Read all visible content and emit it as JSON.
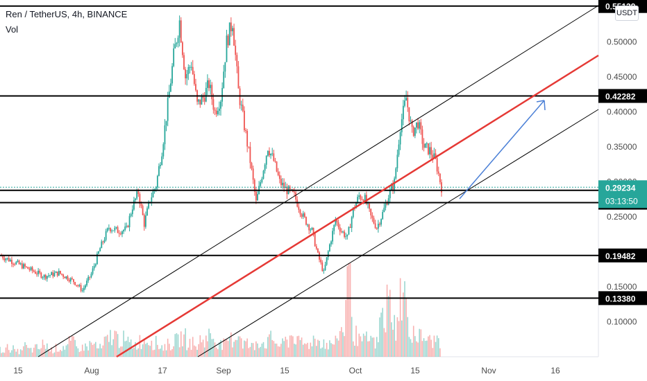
{
  "header": {
    "symbol": "Ren / TetherUS, 4h, BINANCE",
    "indicator": "Vol",
    "currency_button": "USDT"
  },
  "chart_data": {
    "type": "candlestick",
    "title": "Ren / TetherUS, 4h, BINANCE",
    "xlabel": "",
    "ylabel": "",
    "ylim": [
      0.05,
      0.56
    ],
    "x_ticks": [
      "15",
      "Aug",
      "17",
      "Sep",
      "15",
      "Oct",
      "15",
      "Nov",
      "16"
    ],
    "y_ticks": [
      "0.10000",
      "0.15000",
      "0.20000",
      "0.25000",
      "0.30000",
      "0.35000",
      "0.40000",
      "0.45000",
      "0.50000"
    ],
    "last_price": {
      "value": 0.29234,
      "label": "0.29234",
      "countdown": "03:13:50",
      "color": "#26a69a"
    },
    "horizontal_levels": [
      {
        "value": 0.55139,
        "label": "0.55139"
      },
      {
        "value": 0.42282,
        "label": "0.42282"
      },
      {
        "value": 0.28795,
        "label": "0.28795"
      },
      {
        "value": 0.27028,
        "label": "0.27028"
      },
      {
        "value": 0.19482,
        "label": "0.19482"
      },
      {
        "value": 0.1338,
        "label": "0.13380"
      }
    ],
    "colors": {
      "up": "#26a69a",
      "down": "#ef5350",
      "trend_line": "#e53935",
      "arrow": "#4a7fd6",
      "level": "#000000"
    },
    "series": [
      {
        "name": "",
        "points": [
          [
            0,
            0.195
          ],
          [
            5,
            0.185
          ],
          [
            10,
            0.175
          ],
          [
            15,
            0.165
          ],
          [
            20,
            0.17
          ],
          [
            25,
            0.158
          ],
          [
            28,
            0.145
          ],
          [
            31,
            0.168
          ],
          [
            34,
            0.205
          ],
          [
            37,
            0.235
          ],
          [
            40,
            0.23
          ],
          [
            43,
            0.232
          ],
          [
            45,
            0.265
          ],
          [
            47,
            0.285
          ],
          [
            49,
            0.24
          ],
          [
            51,
            0.275
          ],
          [
            53,
            0.295
          ],
          [
            55,
            0.345
          ],
          [
            57,
            0.41
          ],
          [
            59,
            0.48
          ],
          [
            61,
            0.53
          ],
          [
            63,
            0.45
          ],
          [
            65,
            0.47
          ],
          [
            67,
            0.41
          ],
          [
            69,
            0.42
          ],
          [
            71,
            0.44
          ],
          [
            73,
            0.4
          ],
          [
            75,
            0.42
          ],
          [
            77,
            0.5
          ],
          [
            79,
            0.53
          ],
          [
            81,
            0.43
          ],
          [
            83,
            0.38
          ],
          [
            85,
            0.33
          ],
          [
            87,
            0.27
          ],
          [
            89,
            0.31
          ],
          [
            91,
            0.35
          ],
          [
            93,
            0.33
          ],
          [
            95,
            0.3
          ],
          [
            97,
            0.29
          ],
          [
            100,
            0.28
          ],
          [
            103,
            0.25
          ],
          [
            106,
            0.23
          ],
          [
            108,
            0.195
          ],
          [
            110,
            0.17
          ],
          [
            112,
            0.21
          ],
          [
            114,
            0.245
          ],
          [
            116,
            0.23
          ],
          [
            118,
            0.22
          ],
          [
            120,
            0.26
          ],
          [
            122,
            0.28
          ],
          [
            124,
            0.275
          ],
          [
            126,
            0.25
          ],
          [
            128,
            0.235
          ],
          [
            130,
            0.255
          ],
          [
            132,
            0.28
          ],
          [
            134,
            0.3
          ],
          [
            136,
            0.38
          ],
          [
            138,
            0.42
          ],
          [
            140,
            0.37
          ],
          [
            142,
            0.385
          ],
          [
            144,
            0.35
          ],
          [
            146,
            0.345
          ],
          [
            148,
            0.33
          ],
          [
            150,
            0.292
          ]
        ]
      }
    ],
    "volume": [
      0.04,
      0.05,
      0.03,
      0.06,
      0.04,
      0.05,
      0.07,
      0.04,
      0.05,
      0.06,
      0.08,
      0.05,
      0.06,
      0.07,
      0.05,
      0.09,
      0.12,
      0.1,
      0.08,
      0.07,
      0.09,
      0.1,
      0.08,
      0.06,
      0.07,
      0.09,
      0.11,
      0.08,
      0.06,
      0.1,
      0.12,
      0.09,
      0.07,
      0.1,
      0.13,
      0.08,
      0.06,
      0.09,
      0.08,
      0.1,
      0.07,
      0.09,
      0.12,
      0.08,
      0.07,
      0.1,
      0.09,
      0.07,
      0.08,
      0.15,
      0.46,
      0.12,
      0.09,
      0.1,
      0.08,
      0.22,
      0.3,
      0.18,
      0.35,
      0.16,
      0.12,
      0.11,
      0.09,
      0.1
    ]
  }
}
